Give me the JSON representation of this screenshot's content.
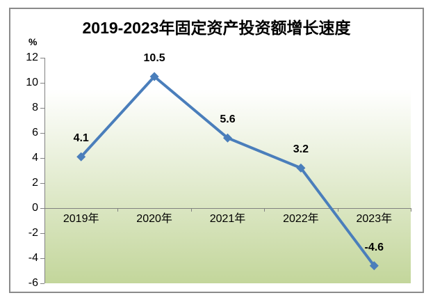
{
  "chart": {
    "title": "2019-2023年固定资产投资额增长速度",
    "unit_label": "%"
  },
  "chart_data": {
    "type": "line",
    "title": "2019-2023年固定资产投资额增长速度",
    "unit_label": "%",
    "categories": [
      "2019年",
      "2020年",
      "2021年",
      "2022年",
      "2023年"
    ],
    "values": [
      4.1,
      10.5,
      5.6,
      3.2,
      -4.6
    ],
    "data_labels": [
      "4.1",
      "10.5",
      "5.6",
      "3.2",
      "-4.6"
    ],
    "xlabel": "",
    "ylabel": "%",
    "ylim": [
      -6,
      12
    ],
    "ytick_step": 2,
    "yticks": [
      "12",
      "10",
      "8",
      "6",
      "4",
      "2",
      "0",
      "-2",
      "-4",
      "-6"
    ],
    "grid": false,
    "legend": "none",
    "marker": "diamond",
    "colors": {
      "line": "#4a7ebb",
      "marker": "#4a7ebb",
      "axis": "#808080",
      "tick_label": "#000000",
      "data_label": "#000000",
      "title": "#000000",
      "plot_bg_top": "#ffffff",
      "plot_bg_bottom": "#c3d69b",
      "frame_border": "#8a8a8a",
      "page_bg": "#ffffff"
    }
  }
}
